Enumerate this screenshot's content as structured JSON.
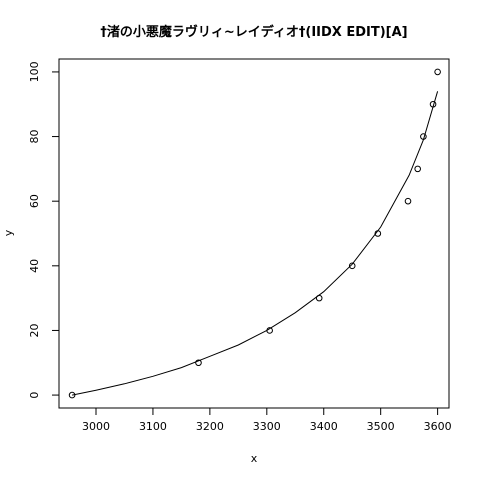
{
  "chart_data": {
    "type": "scatter",
    "title": "†渚の小悪魔ラヴリィ~レイディオ†(IIDX EDIT)[A]",
    "xlabel": "x",
    "ylabel": "y",
    "xlim": [
      2935,
      3620
    ],
    "ylim": [
      -4,
      104
    ],
    "x_ticks": [
      3000,
      3100,
      3200,
      3300,
      3400,
      3500,
      3600
    ],
    "y_ticks": [
      0,
      20,
      40,
      60,
      80,
      100
    ],
    "grid": false,
    "legend": "none",
    "series": [
      {
        "type": "points",
        "marker": "open-circle",
        "x": [
          2958,
          3180,
          3305,
          3392,
          3450,
          3495,
          3548,
          3565,
          3575,
          3592,
          3600
        ],
        "y": [
          0,
          10,
          20,
          30,
          40,
          50,
          60,
          70,
          80,
          90,
          100
        ]
      },
      {
        "type": "line",
        "x": [
          2958,
          3000,
          3050,
          3100,
          3150,
          3200,
          3250,
          3300,
          3350,
          3400,
          3450,
          3500,
          3550,
          3575,
          3600
        ],
        "y": [
          0,
          1.5,
          3.5,
          5.8,
          8.5,
          12,
          15.5,
          20,
          25.5,
          32,
          40.5,
          52,
          68,
          79,
          94
        ]
      }
    ]
  }
}
